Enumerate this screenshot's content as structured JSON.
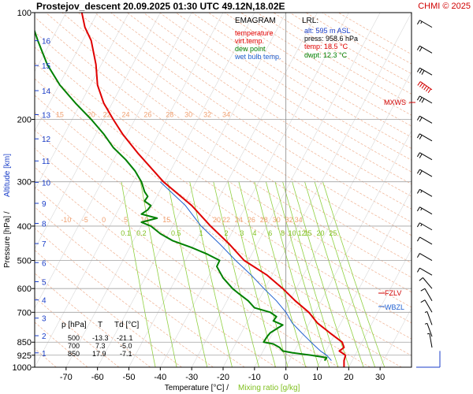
{
  "header": {
    "title": "Prostejov_descent  20.09.2025 01:30 UTC  49.12N,18.02E",
    "copyright": "CHMI © 2025"
  },
  "legend": {
    "heading": "EMAGRAM",
    "items": [
      {
        "label": "temperature",
        "color": "#e00000"
      },
      {
        "label": "virt.temp.",
        "color": "#e00000"
      },
      {
        "label": "dew point",
        "color": "#008000"
      },
      {
        "label": "wet bulb temp.",
        "color": "#2060d0"
      }
    ]
  },
  "lrl": {
    "heading": "LRL:",
    "alt": "alt: 595 m ASL",
    "press": "press: 958.6 hPa",
    "temp": "temp: 18.5 °C",
    "dwpt": "dwpt: 12.3 °C"
  },
  "table": {
    "headers": [
      "p [hPa]",
      "T",
      "Td [°C]"
    ],
    "rows": [
      [
        "500",
        "-13.3",
        "-21.1"
      ],
      [
        "700",
        "7.3",
        "-5.0"
      ],
      [
        "850",
        "17.9",
        "-7.1"
      ]
    ]
  },
  "markers": {
    "mxws": "MXWS",
    "fzlv": "FZLV",
    "wbzl": "WBZL"
  },
  "chart_data": {
    "type": "line",
    "xlabel_temp": "Temperature [°C]  /",
    "xlabel_mix": "Mixing ratio [g/kg]",
    "ylabel_press": "Pressure [hPa]  /",
    "ylabel_alt": "Altitude [km]",
    "xlim": [
      -80,
      40
    ],
    "ylim": [
      1000,
      100
    ],
    "y_scale": "log",
    "x_ticks": [
      -70,
      -60,
      -50,
      -40,
      -30,
      -20,
      -10,
      0,
      10,
      20,
      30
    ],
    "p_ticks": [
      100,
      200,
      300,
      400,
      500,
      600,
      700,
      850,
      925,
      1000
    ],
    "alt_ticks": [
      {
        "label": "1",
        "p": 911
      },
      {
        "label": "2",
        "p": 815
      },
      {
        "label": "3",
        "p": 727
      },
      {
        "label": "4",
        "p": 646
      },
      {
        "label": "5",
        "p": 574
      },
      {
        "label": "6",
        "p": 507
      },
      {
        "label": "7",
        "p": 448
      },
      {
        "label": "8",
        "p": 393
      },
      {
        "label": "9",
        "p": 345
      },
      {
        "label": "10",
        "p": 301
      },
      {
        "label": "11",
        "p": 262
      },
      {
        "label": "12",
        "p": 227
      },
      {
        "label": "13",
        "p": 194
      },
      {
        "label": "14",
        "p": 166
      },
      {
        "label": "15",
        "p": 141
      },
      {
        "label": "16",
        "p": 120
      }
    ],
    "mixing_labels_top": [
      {
        "label": "15",
        "t": -72
      },
      {
        "label": "20",
        "t": -62
      },
      {
        "label": "22",
        "t": -57
      },
      {
        "label": "24",
        "t": -51
      },
      {
        "label": "26",
        "t": -44
      },
      {
        "label": "28",
        "t": -37
      },
      {
        "label": "30",
        "t": -31
      },
      {
        "label": "32",
        "t": -25
      },
      {
        "label": "34",
        "t": -19
      }
    ],
    "mixing_labels_mid": [
      {
        "label": "-10",
        "t": -70
      },
      {
        "label": "-5",
        "t": -64
      },
      {
        "label": "0",
        "t": -58
      },
      {
        "label": "5",
        "t": -51
      },
      {
        "label": "10",
        "t": -45
      },
      {
        "label": "15",
        "t": -38
      },
      {
        "label": "20",
        "t": -22
      },
      {
        "label": "22",
        "t": -19
      },
      {
        "label": "24",
        "t": -15
      },
      {
        "label": "26",
        "t": -11
      },
      {
        "label": "28",
        "t": -7
      },
      {
        "label": "30",
        "t": -3
      },
      {
        "label": "32",
        "t": 1
      },
      {
        "label": "34",
        "t": 4
      }
    ],
    "mix_ratio_labels": [
      {
        "label": "0.1",
        "t": -51
      },
      {
        "label": "0.2",
        "t": -46
      },
      {
        "label": "0.5",
        "t": -35
      },
      {
        "label": "1",
        "t": -27
      },
      {
        "label": "2",
        "t": -19
      },
      {
        "label": "3",
        "t": -14
      },
      {
        "label": "4",
        "t": -10
      },
      {
        "label": "6",
        "t": -5
      },
      {
        "label": "8",
        "t": -1
      },
      {
        "label": "10",
        "t": 2
      },
      {
        "label": "12",
        "t": 5
      },
      {
        "label": "15",
        "t": 7
      },
      {
        "label": "20",
        "t": 11
      },
      {
        "label": "25",
        "t": 15
      }
    ],
    "temperature": [
      [
        1000,
        18.5
      ],
      [
        958,
        18.5
      ],
      [
        925,
        19
      ],
      [
        900,
        17
      ],
      [
        880,
        18.5
      ],
      [
        850,
        17.9
      ],
      [
        800,
        14
      ],
      [
        750,
        10
      ],
      [
        700,
        7.3
      ],
      [
        650,
        3
      ],
      [
        600,
        -1
      ],
      [
        550,
        -6
      ],
      [
        500,
        -13.3
      ],
      [
        450,
        -18
      ],
      [
        400,
        -24
      ],
      [
        350,
        -30
      ],
      [
        300,
        -39
      ],
      [
        250,
        -47
      ],
      [
        220,
        -52
      ],
      [
        200,
        -55
      ],
      [
        180,
        -58
      ],
      [
        160,
        -60
      ],
      [
        140,
        -60.5
      ],
      [
        120,
        -62
      ],
      [
        110,
        -64
      ],
      [
        100,
        -65
      ]
    ],
    "dewpoint": [
      [
        958,
        12.3
      ],
      [
        940,
        13
      ],
      [
        925,
        8
      ],
      [
        910,
        2
      ],
      [
        900,
        -1
      ],
      [
        880,
        -2
      ],
      [
        860,
        -4
      ],
      [
        850,
        -7.1
      ],
      [
        820,
        -6
      ],
      [
        800,
        -5
      ],
      [
        780,
        -3
      ],
      [
        760,
        -1
      ],
      [
        740,
        -4
      ],
      [
        720,
        -3
      ],
      [
        700,
        -5
      ],
      [
        680,
        -10
      ],
      [
        650,
        -12
      ],
      [
        620,
        -15
      ],
      [
        600,
        -17
      ],
      [
        560,
        -20
      ],
      [
        520,
        -22
      ],
      [
        500,
        -21.1
      ],
      [
        480,
        -25
      ],
      [
        460,
        -30
      ],
      [
        440,
        -36
      ],
      [
        420,
        -40
      ],
      [
        400,
        -43
      ],
      [
        390,
        -46
      ],
      [
        380,
        -41
      ],
      [
        370,
        -46
      ],
      [
        360,
        -44
      ],
      [
        350,
        -43
      ],
      [
        340,
        -45
      ],
      [
        330,
        -44
      ],
      [
        320,
        -45
      ],
      [
        300,
        -46
      ],
      [
        280,
        -48
      ],
      [
        260,
        -51
      ],
      [
        240,
        -55
      ],
      [
        220,
        -58
      ],
      [
        200,
        -62
      ],
      [
        180,
        -67
      ],
      [
        160,
        -72
      ],
      [
        140,
        -76
      ],
      [
        120,
        -79
      ],
      [
        100,
        -82
      ]
    ],
    "wetbulb": [
      [
        958,
        14.5
      ],
      [
        925,
        13
      ],
      [
        900,
        11
      ],
      [
        850,
        8
      ],
      [
        800,
        5
      ],
      [
        750,
        2
      ],
      [
        700,
        0
      ],
      [
        650,
        -3
      ],
      [
        600,
        -7
      ],
      [
        550,
        -11
      ],
      [
        500,
        -16
      ],
      [
        450,
        -21
      ],
      [
        400,
        -27
      ],
      [
        350,
        -32
      ],
      [
        300,
        -40
      ]
    ],
    "wind_barbs": [
      {
        "p": 110,
        "dir": 300,
        "kt": 15
      },
      {
        "p": 130,
        "dir": 300,
        "kt": 20
      },
      {
        "p": 150,
        "dir": 300,
        "kt": 30
      },
      {
        "p": 165,
        "dir": 305,
        "kt": 60
      },
      {
        "p": 180,
        "dir": 300,
        "kt": 30
      },
      {
        "p": 205,
        "dir": 300,
        "kt": 20
      },
      {
        "p": 230,
        "dir": 300,
        "kt": 20
      },
      {
        "p": 260,
        "dir": 300,
        "kt": 20
      },
      {
        "p": 290,
        "dir": 300,
        "kt": 20
      },
      {
        "p": 330,
        "dir": 300,
        "kt": 15
      },
      {
        "p": 370,
        "dir": 300,
        "kt": 15
      },
      {
        "p": 410,
        "dir": 300,
        "kt": 15
      },
      {
        "p": 450,
        "dir": 300,
        "kt": 10
      },
      {
        "p": 500,
        "dir": 300,
        "kt": 10
      },
      {
        "p": 550,
        "dir": 300,
        "kt": 10
      },
      {
        "p": 600,
        "dir": 320,
        "kt": 10
      },
      {
        "p": 650,
        "dir": 330,
        "kt": 10
      },
      {
        "p": 700,
        "dir": 330,
        "kt": 10
      },
      {
        "p": 760,
        "dir": 340,
        "kt": 5
      },
      {
        "p": 820,
        "dir": 340,
        "kt": 5
      },
      {
        "p": 880,
        "dir": 350,
        "kt": 5
      }
    ]
  },
  "colors": {
    "temperature": "#e00000",
    "dewpoint": "#008000",
    "wetbulb": "#2060d0",
    "dry_adiabat": "#f0b090",
    "mixing_ratio": "#90d040",
    "isobar": "#a0a0a0",
    "accent_red": "#d00000",
    "accent_blue": "#1a3ec8"
  }
}
